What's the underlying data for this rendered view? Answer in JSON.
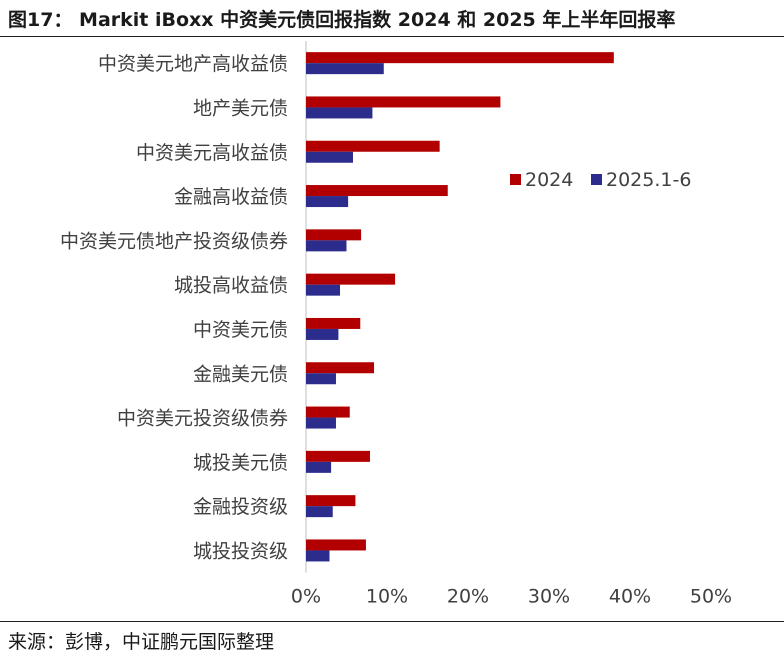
{
  "header": {
    "title": "图17： Markit iBoxx 中资美元债回报指数 2024 和 2025 年上半年回报率"
  },
  "footer": {
    "source": "来源：彭博，中证鹏元国际整理"
  },
  "colors": {
    "series_2024": "#b20000",
    "series_2025": "#2b2c8c"
  },
  "chart_data": {
    "type": "bar",
    "orientation": "horizontal",
    "categories": [
      "中资美元地产高收益债",
      "地产美元债",
      "中资美元高收益债",
      "金融高收益债",
      "中资美元债地产投资级债券",
      "城投高收益债",
      "中资美元债",
      "金融美元债",
      "中资美元投资级债券",
      "城投美元债",
      "金融投资级",
      "城投投资级"
    ],
    "series": [
      {
        "name": "2024",
        "values": [
          38.0,
          24.0,
          16.5,
          17.5,
          6.8,
          11.0,
          6.7,
          8.4,
          5.4,
          7.9,
          6.1,
          7.4
        ]
      },
      {
        "name": "2025.1-6",
        "values": [
          9.6,
          8.2,
          5.8,
          5.2,
          5.0,
          4.2,
          4.0,
          3.7,
          3.7,
          3.1,
          3.3,
          2.9
        ]
      }
    ],
    "xlim": [
      0,
      50
    ],
    "xticks": [
      "0%",
      "10%",
      "20%",
      "30%",
      "40%",
      "50%"
    ],
    "legend_position": "right-middle",
    "grid": false
  }
}
